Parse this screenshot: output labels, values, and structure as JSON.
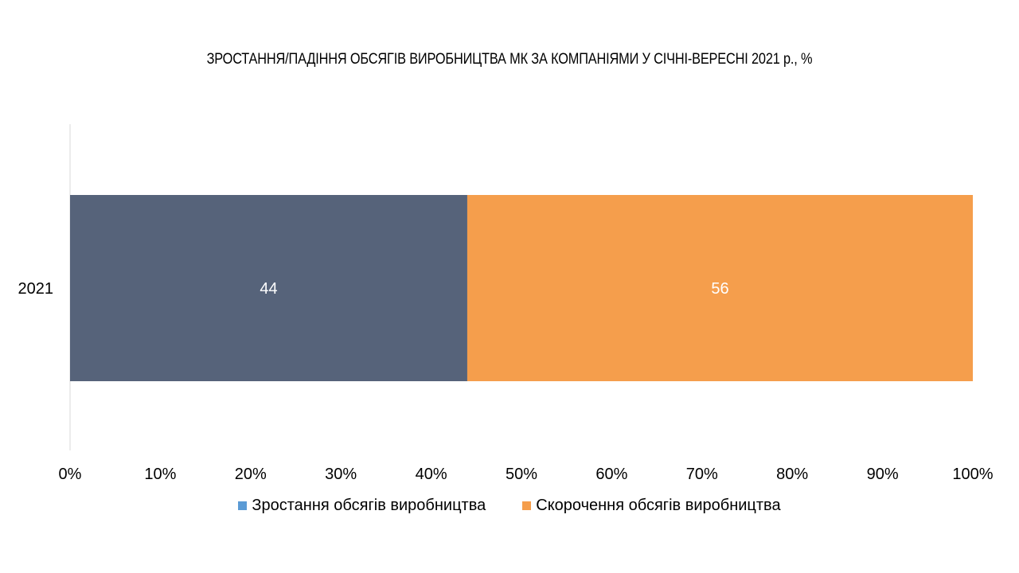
{
  "chart_data": {
    "type": "bar",
    "orientation": "horizontal",
    "stacked": "percent",
    "title": "ЗРОСТАННЯ/ПАДІННЯ ОБСЯГІВ ВИРОБНИЦТВА МК ЗА КОМПАНІЯМИ У СІЧНІ-ВЕРЕСНІ 2021 р., %",
    "categories": [
      "2021"
    ],
    "series": [
      {
        "name": "Зростання обсягів виробництва",
        "values": [
          44
        ],
        "color": "#56637a",
        "legend_color": "#5b9bd5"
      },
      {
        "name": "Скорочення обсягів виробництва",
        "values": [
          56
        ],
        "color": "#f59e4c",
        "legend_color": "#f59e4c"
      }
    ],
    "data_labels": [
      "44",
      "56"
    ],
    "x_ticks": [
      "0%",
      "10%",
      "20%",
      "30%",
      "40%",
      "50%",
      "60%",
      "70%",
      "80%",
      "90%",
      "100%"
    ],
    "xlim": [
      0,
      100
    ],
    "grid": false,
    "legend_position": "bottom"
  }
}
